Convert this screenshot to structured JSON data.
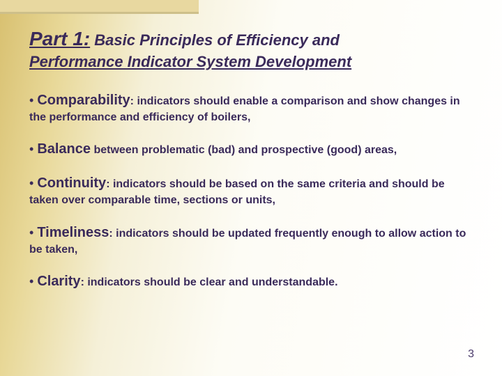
{
  "title": {
    "part_label": "Part 1:",
    "rest_line1": " Basic Principles of Efficiency and",
    "line2": "Performance Indicator System Development"
  },
  "bullets": [
    {
      "lead": "Comparability",
      "desc": ": indicators should enable a comparison and show changes in the performance and efficiency of boilers,"
    },
    {
      "lead": "Balance",
      "desc": " between problematic (bad) and prospective (good) areas,"
    },
    {
      "lead": "Continuity",
      "desc": ": indicators should be based on the same criteria and should be taken over comparable time, sections or units,"
    },
    {
      "lead": "Timeliness",
      "desc": ": indicators should be updated frequently enough to allow action to be taken,"
    },
    {
      "lead": "Clarity",
      "desc": ": indicators should be clear and understandable."
    }
  ],
  "page_number": "3",
  "colors": {
    "text": "#3a2a5a",
    "bg_dark": "#d8c070",
    "bg_mid": "#e8d898",
    "bg_light": "#fdfcf5",
    "topbar_fill": "#e8d8a0",
    "topbar_border": "#cdbf8a"
  },
  "typography": {
    "title_part_size": 28,
    "title_rest_size": 22,
    "lead_size": 20,
    "body_size": 16,
    "family": "Verdana"
  }
}
